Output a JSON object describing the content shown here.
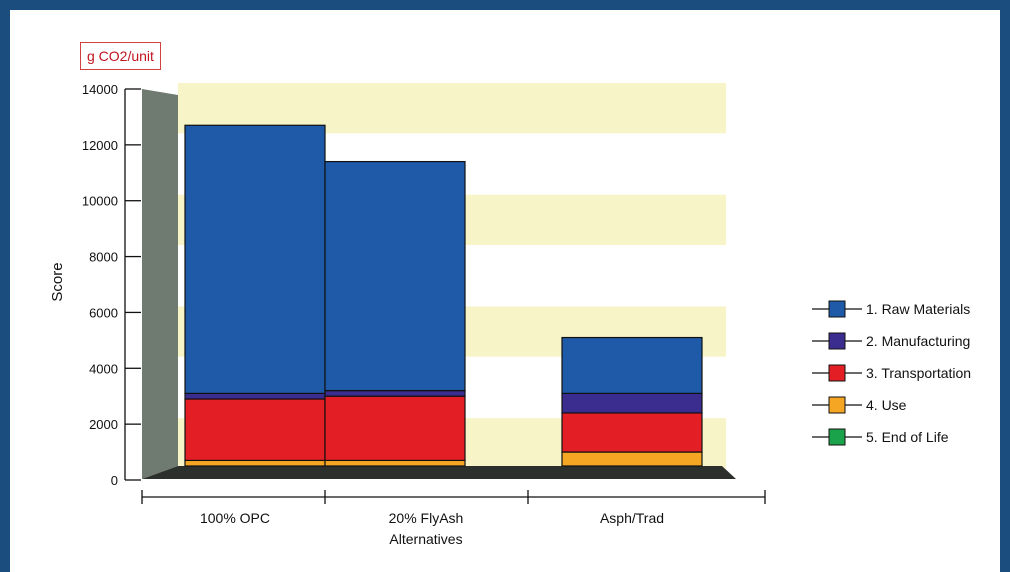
{
  "chart_data": {
    "type": "bar",
    "stacked": true,
    "unit_label": "g CO2/unit",
    "ylabel": "Score",
    "ylim": [
      0,
      14000
    ],
    "yticks": [
      0,
      2000,
      4000,
      6000,
      8000,
      10000,
      12000,
      14000
    ],
    "categories": [
      [
        "100% OPC"
      ],
      [
        "20% FlyAsh",
        "Alternatives"
      ],
      [
        "Asph/Trad"
      ]
    ],
    "series": [
      {
        "name": "1. Raw Materials",
        "color": "#1f5aa8",
        "values": [
          9600,
          8200,
          2000
        ]
      },
      {
        "name": "2. Manufacturing",
        "color": "#3b2d8f",
        "values": [
          200,
          200,
          700
        ]
      },
      {
        "name": "3. Transportation",
        "color": "#e31e24",
        "values": [
          2200,
          2300,
          1400
        ]
      },
      {
        "name": "4. Use",
        "color": "#f5a623",
        "values": [
          200,
          200,
          500
        ]
      },
      {
        "name": "5. End of Life",
        "color": "#1aa34a",
        "values": [
          0,
          0,
          0
        ]
      }
    ],
    "legend_position": "right"
  }
}
